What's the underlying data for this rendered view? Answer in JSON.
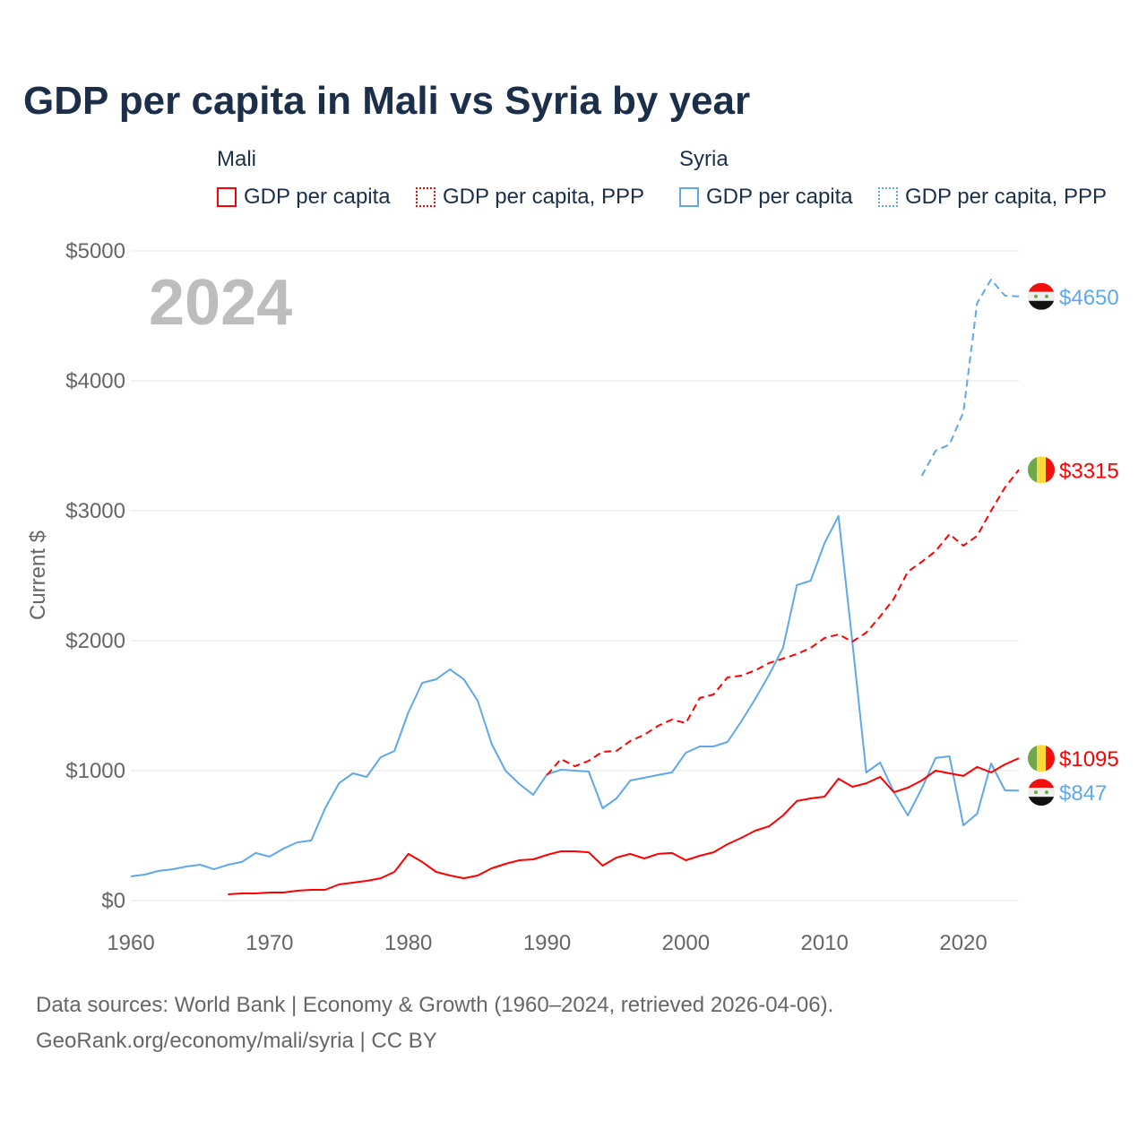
{
  "title": "GDP per capita in Mali vs Syria by year",
  "legend": {
    "groups": [
      {
        "name": "Mali",
        "items": [
          {
            "label": "GDP per capita",
            "style": "solid"
          },
          {
            "label": "GDP per capita, PPP",
            "style": "dotted"
          }
        ],
        "color": "#ff0000"
      },
      {
        "name": "Syria",
        "items": [
          {
            "label": "GDP per capita",
            "style": "solid"
          },
          {
            "label": "GDP per capita, PPP",
            "style": "dotted"
          }
        ],
        "color": "#5fa8eb"
      }
    ]
  },
  "year_watermark": "2024",
  "source_line1": "Data sources: World Bank | Economy & Growth (1960–2024, retrieved 2026-04-06).",
  "source_line2": "GeoRank.org/economy/mali/syria | CC BY",
  "chart_data": {
    "type": "line",
    "title": "GDP per capita in Mali vs Syria by year",
    "xlabel": "",
    "ylabel": "Current $",
    "xlim": [
      1960,
      2024
    ],
    "ylim": [
      0,
      5000
    ],
    "x_ticks": [
      1960,
      1970,
      1980,
      1990,
      2000,
      2010,
      2020
    ],
    "y_ticks": [
      0,
      1000,
      2000,
      3000,
      4000,
      5000
    ],
    "y_tick_labels": [
      "$0",
      "$1000",
      "$2000",
      "$3000",
      "$4000",
      "$5000"
    ],
    "grid": true,
    "series": [
      {
        "name": "Syria GDP per capita",
        "country": "Syria",
        "color": "#5fa8eb",
        "dash": false,
        "start": 1960,
        "end_label": "$847",
        "values": [
          186,
          200,
          228,
          241,
          262,
          276,
          241,
          276,
          297,
          366,
          338,
          400,
          448,
          462,
          710,
          903,
          979,
          952,
          1103,
          1152,
          1448,
          1676,
          1703,
          1779,
          1703,
          1538,
          1207,
          1000,
          897,
          814,
          972,
          1007,
          1000,
          993,
          710,
          786,
          924,
          945,
          966,
          986,
          1138,
          1186,
          1186,
          1221,
          1379,
          1552,
          1738,
          1945,
          2428,
          2462,
          2752,
          2959,
          1990,
          986,
          1062,
          834,
          655,
          862,
          1097,
          1110,
          579,
          669,
          1055,
          848,
          847
        ]
      },
      {
        "name": "Syria GDP per capita, PPP",
        "country": "Syria",
        "color": "#5fa8eb",
        "dash": true,
        "start": 2017,
        "end_label": "$4650",
        "values": [
          3269,
          3462,
          3510,
          3759,
          4600,
          4779,
          4655,
          4650
        ]
      },
      {
        "name": "Mali GDP per capita",
        "country": "Mali",
        "color": "#ff0000",
        "dash": false,
        "start": 1967,
        "end_label": "$1095",
        "values": [
          48,
          55,
          55,
          62,
          62,
          76,
          83,
          83,
          124,
          138,
          152,
          172,
          221,
          359,
          297,
          221,
          193,
          172,
          193,
          248,
          283,
          310,
          317,
          352,
          379,
          379,
          372,
          269,
          331,
          359,
          324,
          359,
          366,
          310,
          345,
          372,
          434,
          483,
          538,
          572,
          655,
          766,
          786,
          800,
          938,
          876,
          903,
          952,
          834,
          869,
          924,
          1000,
          979,
          959,
          1028,
          986,
          1048,
          1095
        ]
      },
      {
        "name": "Mali GDP per capita, PPP",
        "country": "Mali",
        "color": "#ff0000",
        "dash": true,
        "start": 1990,
        "end_label": "$3315",
        "values": [
          966,
          1090,
          1034,
          1076,
          1145,
          1152,
          1228,
          1276,
          1345,
          1393,
          1366,
          1559,
          1586,
          1717,
          1731,
          1772,
          1828,
          1862,
          1897,
          1945,
          2021,
          2048,
          1993,
          2062,
          2186,
          2324,
          2531,
          2607,
          2690,
          2821,
          2731,
          2807,
          3000,
          3179,
          3315
        ]
      }
    ]
  }
}
